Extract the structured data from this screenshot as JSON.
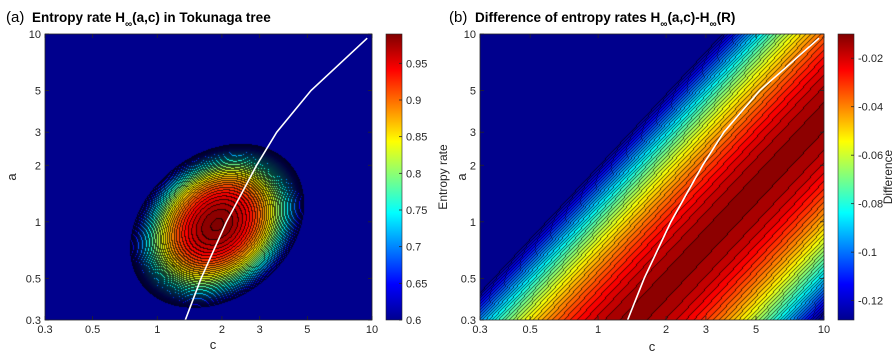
{
  "chart_data": [
    {
      "type": "contour",
      "panel_label": "(a)",
      "title": "Entropy rate H∞(a,c) in Tokunaga tree",
      "title_parts": {
        "lead": "Entropy rate H",
        "sub": "∞",
        "tail": "(a,c) in Tokunaga tree"
      },
      "xlabel": "c",
      "ylabel": "a",
      "xscale": "log",
      "yscale": "log",
      "xlim": [
        0.3,
        10
      ],
      "ylim": [
        0.3,
        10
      ],
      "x_ticks": [
        0.3,
        0.5,
        1,
        2,
        3,
        5,
        10
      ],
      "x_tick_labels": [
        "0.3",
        "0.5",
        "1",
        "2",
        "3",
        "5",
        "10"
      ],
      "y_ticks": [
        0.3,
        0.5,
        1,
        2,
        3,
        5,
        10
      ],
      "y_tick_labels": [
        "0.3",
        "0.5",
        "1",
        "2",
        "3",
        "5",
        "10"
      ],
      "colorbar": {
        "label": "Entropy rate",
        "limits": [
          0.6,
          0.99
        ],
        "ticks": [
          0.6,
          0.65,
          0.7,
          0.75,
          0.8,
          0.85,
          0.9,
          0.95
        ],
        "tick_labels": [
          "0.6",
          "0.65",
          "0.7",
          "0.75",
          "0.8",
          "0.85",
          "0.9",
          "0.95"
        ]
      },
      "peak": {
        "c": 1.9,
        "a": 0.95,
        "value": 0.99
      },
      "curve": {
        "color": "#ffffff",
        "points": [
          [
            1.35,
            0.3
          ],
          [
            1.6,
            0.5
          ],
          [
            2.1,
            1
          ],
          [
            2.9,
            2
          ],
          [
            3.6,
            3
          ],
          [
            5.2,
            5
          ],
          [
            9.5,
            9.5
          ]
        ]
      }
    },
    {
      "type": "contour",
      "panel_label": "(b)",
      "title": "Difference of entropy rates H∞(a,c)-H∞(R)",
      "title_parts": {
        "lead": "Difference of entropy rates H",
        "sub1": "∞",
        "mid": "(a,c)-H",
        "sub2": "∞",
        "tail": "(R)"
      },
      "xlabel": "c",
      "ylabel": "a",
      "xscale": "log",
      "yscale": "log",
      "xlim": [
        0.3,
        10
      ],
      "ylim": [
        0.3,
        10
      ],
      "x_ticks": [
        0.3,
        0.5,
        1,
        2,
        3,
        5,
        10
      ],
      "x_tick_labels": [
        "0.3",
        "0.5",
        "1",
        "2",
        "3",
        "5",
        "10"
      ],
      "y_ticks": [
        0.3,
        0.5,
        1,
        2,
        3,
        5,
        10
      ],
      "y_tick_labels": [
        "0.3",
        "0.5",
        "1",
        "2",
        "3",
        "5",
        "10"
      ],
      "colorbar": {
        "label": "Difference",
        "limits": [
          -0.128,
          -0.01
        ],
        "ticks": [
          -0.02,
          -0.04,
          -0.06,
          -0.08,
          -0.1,
          -0.12
        ],
        "tick_labels": [
          "-0.02",
          "-0.04",
          "-0.06",
          "-0.08",
          "-0.1",
          "-0.12"
        ]
      },
      "curve": {
        "color": "#ffffff",
        "points": [
          [
            1.35,
            0.3
          ],
          [
            1.6,
            0.5
          ],
          [
            2.1,
            1
          ],
          [
            2.9,
            2
          ],
          [
            3.6,
            3
          ],
          [
            5.2,
            5
          ],
          [
            9.5,
            9.5
          ]
        ]
      }
    }
  ]
}
